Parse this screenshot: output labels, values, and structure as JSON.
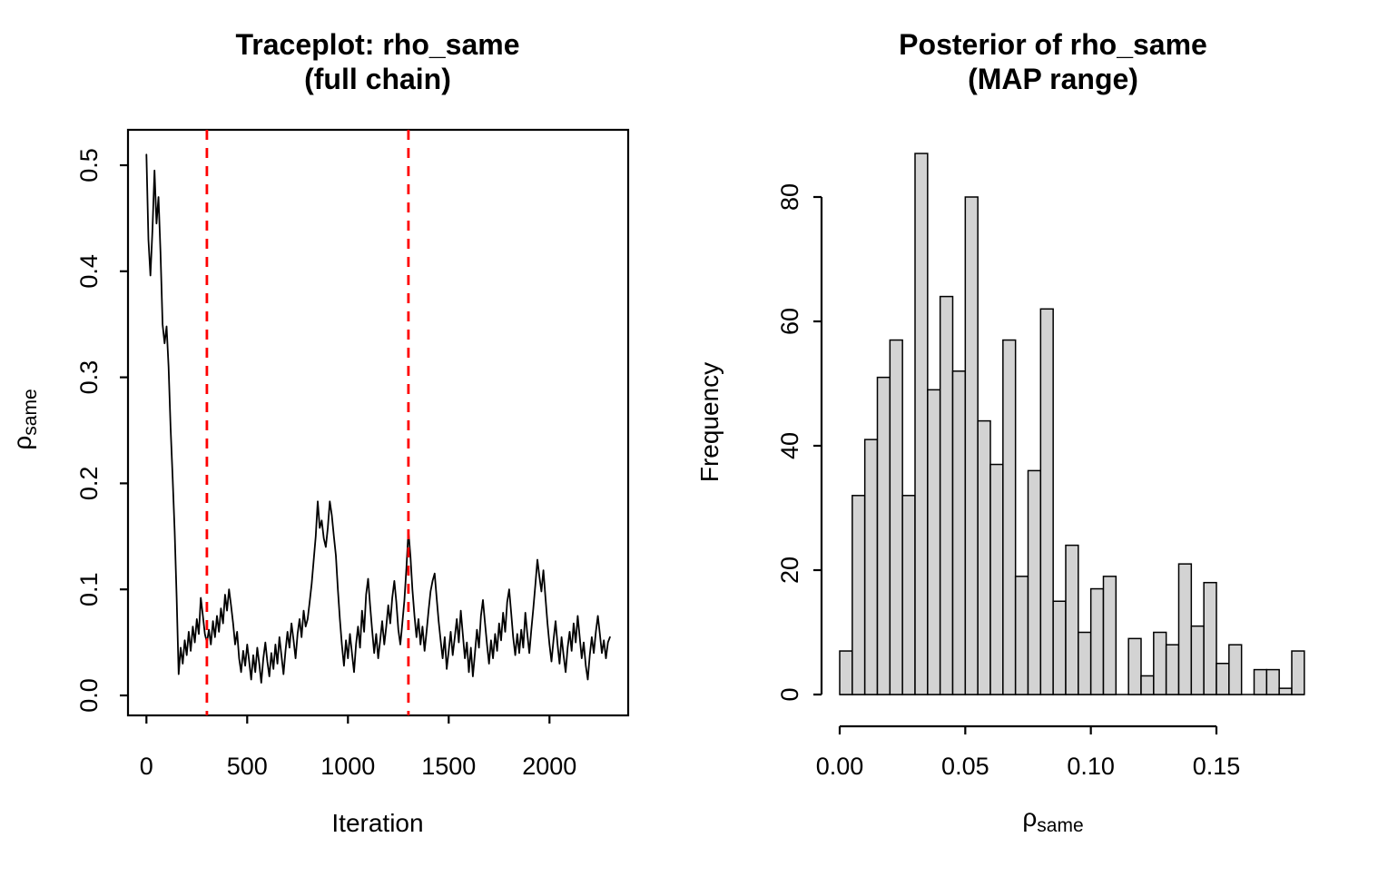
{
  "page": {
    "background": "#ffffff"
  },
  "colors": {
    "foreground": "#000000",
    "vline": "#ff0000",
    "bar_fill": "#d3d3d3",
    "bar_border": "#000000"
  },
  "left_plot": {
    "title_line1": "Traceplot: rho_same",
    "title_line2": "(full chain)",
    "xlabel": "Iteration",
    "ylabel_symbol": "ρ",
    "ylabel_subscript": "same"
  },
  "right_plot": {
    "title_line1": "Posterior of rho_same",
    "title_line2": "(MAP range)",
    "xlabel_symbol": "ρ",
    "xlabel_subscript": "same",
    "ylabel": "Frequency"
  },
  "chart_data": [
    {
      "type": "line",
      "title": "Traceplot: rho_same (full chain)",
      "xlabel": "Iteration",
      "ylabel": "rho_same",
      "xlim": [
        0,
        2300
      ],
      "ylim": [
        0.0,
        0.51
      ],
      "xticks": [
        0,
        500,
        1000,
        1500,
        2000
      ],
      "xtick_labels": [
        "0",
        "500",
        "1000",
        "1500",
        "2000"
      ],
      "yticks": [
        0.0,
        0.1,
        0.2,
        0.3,
        0.4,
        0.5
      ],
      "ytick_labels": [
        "0.0",
        "0.1",
        "0.2",
        "0.3",
        "0.4",
        "0.5"
      ],
      "grid": false,
      "frame": "box",
      "vlines": {
        "x": [
          300,
          1300
        ],
        "color": "#ff0000",
        "style": "dashed",
        "width": 2.8
      },
      "series": [
        {
          "name": "rho_same trace",
          "color": "#000000",
          "points": [
            [
              0,
              0.51
            ],
            [
              10,
              0.43
            ],
            [
              20,
              0.396
            ],
            [
              30,
              0.44
            ],
            [
              40,
              0.495
            ],
            [
              50,
              0.445
            ],
            [
              60,
              0.47
            ],
            [
              70,
              0.418
            ],
            [
              80,
              0.35
            ],
            [
              90,
              0.332
            ],
            [
              100,
              0.348
            ],
            [
              110,
              0.31
            ],
            [
              120,
              0.253
            ],
            [
              130,
              0.205
            ],
            [
              140,
              0.155
            ],
            [
              150,
              0.092
            ],
            [
              160,
              0.02
            ],
            [
              170,
              0.045
            ],
            [
              180,
              0.03
            ],
            [
              190,
              0.052
            ],
            [
              200,
              0.038
            ],
            [
              210,
              0.06
            ],
            [
              220,
              0.042
            ],
            [
              230,
              0.065
            ],
            [
              240,
              0.05
            ],
            [
              250,
              0.072
            ],
            [
              260,
              0.058
            ],
            [
              270,
              0.092
            ],
            [
              280,
              0.075
            ],
            [
              290,
              0.058
            ],
            [
              300,
              0.05
            ],
            [
              310,
              0.062
            ],
            [
              320,
              0.048
            ],
            [
              330,
              0.07
            ],
            [
              340,
              0.055
            ],
            [
              350,
              0.075
            ],
            [
              360,
              0.06
            ],
            [
              370,
              0.082
            ],
            [
              380,
              0.068
            ],
            [
              390,
              0.095
            ],
            [
              400,
              0.08
            ],
            [
              410,
              0.1
            ],
            [
              420,
              0.085
            ],
            [
              430,
              0.068
            ],
            [
              440,
              0.048
            ],
            [
              450,
              0.06
            ],
            [
              460,
              0.035
            ],
            [
              470,
              0.022
            ],
            [
              480,
              0.042
            ],
            [
              490,
              0.028
            ],
            [
              500,
              0.048
            ],
            [
              510,
              0.032
            ],
            [
              520,
              0.015
            ],
            [
              530,
              0.038
            ],
            [
              540,
              0.022
            ],
            [
              550,
              0.045
            ],
            [
              560,
              0.03
            ],
            [
              570,
              0.012
            ],
            [
              580,
              0.035
            ],
            [
              590,
              0.05
            ],
            [
              600,
              0.032
            ],
            [
              610,
              0.018
            ],
            [
              620,
              0.04
            ],
            [
              630,
              0.025
            ],
            [
              640,
              0.048
            ],
            [
              650,
              0.03
            ],
            [
              660,
              0.055
            ],
            [
              670,
              0.038
            ],
            [
              680,
              0.02
            ],
            [
              690,
              0.042
            ],
            [
              700,
              0.06
            ],
            [
              710,
              0.045
            ],
            [
              720,
              0.068
            ],
            [
              730,
              0.052
            ],
            [
              740,
              0.035
            ],
            [
              750,
              0.058
            ],
            [
              760,
              0.072
            ],
            [
              770,
              0.055
            ],
            [
              780,
              0.08
            ],
            [
              790,
              0.065
            ],
            [
              800,
              0.072
            ],
            [
              810,
              0.088
            ],
            [
              820,
              0.105
            ],
            [
              830,
              0.128
            ],
            [
              840,
              0.15
            ],
            [
              850,
              0.183
            ],
            [
              860,
              0.158
            ],
            [
              870,
              0.165
            ],
            [
              880,
              0.148
            ],
            [
              890,
              0.14
            ],
            [
              900,
              0.158
            ],
            [
              910,
              0.183
            ],
            [
              920,
              0.17
            ],
            [
              930,
              0.15
            ],
            [
              940,
              0.132
            ],
            [
              950,
              0.1
            ],
            [
              960,
              0.072
            ],
            [
              970,
              0.048
            ],
            [
              980,
              0.028
            ],
            [
              990,
              0.052
            ],
            [
              1000,
              0.035
            ],
            [
              1010,
              0.058
            ],
            [
              1020,
              0.04
            ],
            [
              1030,
              0.022
            ],
            [
              1040,
              0.048
            ],
            [
              1050,
              0.065
            ],
            [
              1060,
              0.045
            ],
            [
              1070,
              0.08
            ],
            [
              1080,
              0.06
            ],
            [
              1090,
              0.095
            ],
            [
              1100,
              0.11
            ],
            [
              1110,
              0.085
            ],
            [
              1120,
              0.062
            ],
            [
              1130,
              0.04
            ],
            [
              1140,
              0.058
            ],
            [
              1150,
              0.035
            ],
            [
              1160,
              0.052
            ],
            [
              1170,
              0.07
            ],
            [
              1180,
              0.048
            ],
            [
              1190,
              0.065
            ],
            [
              1200,
              0.085
            ],
            [
              1210,
              0.068
            ],
            [
              1220,
              0.092
            ],
            [
              1230,
              0.108
            ],
            [
              1240,
              0.088
            ],
            [
              1250,
              0.062
            ],
            [
              1260,
              0.048
            ],
            [
              1270,
              0.068
            ],
            [
              1280,
              0.09
            ],
            [
              1290,
              0.12
            ],
            [
              1300,
              0.155
            ],
            [
              1310,
              0.132
            ],
            [
              1320,
              0.1
            ],
            [
              1330,
              0.075
            ],
            [
              1340,
              0.055
            ],
            [
              1350,
              0.072
            ],
            [
              1360,
              0.048
            ],
            [
              1370,
              0.065
            ],
            [
              1380,
              0.042
            ],
            [
              1390,
              0.06
            ],
            [
              1400,
              0.08
            ],
            [
              1410,
              0.098
            ],
            [
              1420,
              0.108
            ],
            [
              1430,
              0.115
            ],
            [
              1440,
              0.092
            ],
            [
              1450,
              0.07
            ],
            [
              1460,
              0.052
            ],
            [
              1470,
              0.035
            ],
            [
              1480,
              0.055
            ],
            [
              1490,
              0.025
            ],
            [
              1500,
              0.042
            ],
            [
              1510,
              0.06
            ],
            [
              1520,
              0.038
            ],
            [
              1530,
              0.055
            ],
            [
              1540,
              0.072
            ],
            [
              1550,
              0.05
            ],
            [
              1560,
              0.08
            ],
            [
              1570,
              0.058
            ],
            [
              1580,
              0.035
            ],
            [
              1590,
              0.05
            ],
            [
              1600,
              0.022
            ],
            [
              1610,
              0.045
            ],
            [
              1620,
              0.018
            ],
            [
              1630,
              0.04
            ],
            [
              1640,
              0.062
            ],
            [
              1650,
              0.045
            ],
            [
              1660,
              0.075
            ],
            [
              1670,
              0.09
            ],
            [
              1680,
              0.068
            ],
            [
              1690,
              0.048
            ],
            [
              1700,
              0.03
            ],
            [
              1710,
              0.052
            ],
            [
              1720,
              0.035
            ],
            [
              1730,
              0.058
            ],
            [
              1740,
              0.042
            ],
            [
              1750,
              0.068
            ],
            [
              1760,
              0.052
            ],
            [
              1770,
              0.078
            ],
            [
              1780,
              0.06
            ],
            [
              1790,
              0.088
            ],
            [
              1800,
              0.1
            ],
            [
              1810,
              0.078
            ],
            [
              1820,
              0.055
            ],
            [
              1830,
              0.038
            ],
            [
              1840,
              0.058
            ],
            [
              1850,
              0.04
            ],
            [
              1860,
              0.062
            ],
            [
              1870,
              0.045
            ],
            [
              1880,
              0.078
            ],
            [
              1890,
              0.058
            ],
            [
              1900,
              0.04
            ],
            [
              1910,
              0.062
            ],
            [
              1920,
              0.082
            ],
            [
              1930,
              0.105
            ],
            [
              1940,
              0.128
            ],
            [
              1950,
              0.112
            ],
            [
              1960,
              0.098
            ],
            [
              1970,
              0.118
            ],
            [
              1980,
              0.092
            ],
            [
              1990,
              0.068
            ],
            [
              2000,
              0.048
            ],
            [
              2010,
              0.032
            ],
            [
              2020,
              0.052
            ],
            [
              2030,
              0.07
            ],
            [
              2040,
              0.048
            ],
            [
              2050,
              0.03
            ],
            [
              2060,
              0.055
            ],
            [
              2070,
              0.038
            ],
            [
              2080,
              0.022
            ],
            [
              2090,
              0.045
            ],
            [
              2100,
              0.06
            ],
            [
              2110,
              0.042
            ],
            [
              2120,
              0.068
            ],
            [
              2130,
              0.05
            ],
            [
              2140,
              0.075
            ],
            [
              2150,
              0.055
            ],
            [
              2160,
              0.035
            ],
            [
              2170,
              0.05
            ],
            [
              2180,
              0.028
            ],
            [
              2190,
              0.015
            ],
            [
              2200,
              0.038
            ],
            [
              2210,
              0.055
            ],
            [
              2220,
              0.04
            ],
            [
              2230,
              0.06
            ],
            [
              2240,
              0.075
            ],
            [
              2250,
              0.058
            ],
            [
              2260,
              0.04
            ],
            [
              2270,
              0.052
            ],
            [
              2280,
              0.035
            ],
            [
              2290,
              0.05
            ],
            [
              2300,
              0.055
            ]
          ]
        }
      ]
    },
    {
      "type": "bar",
      "subtype": "histogram",
      "title": "Posterior of rho_same (MAP range)",
      "xlabel": "rho_same",
      "ylabel": "Frequency",
      "bin_start": 0.0,
      "bin_width": 0.005,
      "counts": [
        7,
        32,
        41,
        51,
        57,
        32,
        87,
        49,
        64,
        52,
        80,
        44,
        37,
        57,
        19,
        36,
        62,
        15,
        24,
        10,
        17,
        19,
        0,
        9,
        3,
        10,
        8,
        21,
        11,
        18,
        5,
        8,
        0,
        4,
        4,
        1,
        7
      ],
      "xlim": [
        0.0,
        0.185
      ],
      "ylim": [
        0,
        87
      ],
      "xticks": [
        0.0,
        0.05,
        0.1,
        0.15
      ],
      "xtick_labels": [
        "0.00",
        "0.05",
        "0.10",
        "0.15"
      ],
      "yticks": [
        0,
        20,
        40,
        60,
        80
      ],
      "ytick_labels": [
        "0",
        "20",
        "40",
        "60",
        "80"
      ],
      "bar_fill": "#d3d3d3",
      "bar_border": "#000000",
      "grid": false,
      "legend": "none"
    }
  ]
}
